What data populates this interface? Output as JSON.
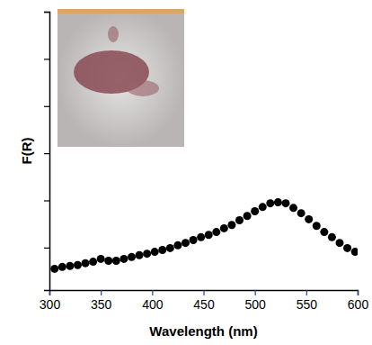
{
  "chart_data": {
    "type": "scatter",
    "x_label": "Wavelength (nm)",
    "y_label": "F(R)",
    "x": [
      305,
      312.5,
      320,
      327.5,
      335,
      342.5,
      350,
      357.5,
      365,
      372.5,
      380,
      387.5,
      395,
      402.5,
      410,
      417.5,
      425,
      432.5,
      440,
      447.5,
      455,
      462.5,
      470,
      477.5,
      485,
      492.5,
      500,
      507.5,
      515,
      522.5,
      530,
      537.5,
      545,
      552.5,
      560,
      567.5,
      575,
      582.5,
      590,
      597.5
    ],
    "values": [
      0.55,
      0.59,
      0.61,
      0.63,
      0.67,
      0.7,
      0.76,
      0.72,
      0.72,
      0.76,
      0.8,
      0.84,
      0.87,
      0.91,
      0.95,
      0.99,
      1.05,
      1.1,
      1.16,
      1.22,
      1.27,
      1.33,
      1.41,
      1.48,
      1.58,
      1.67,
      1.77,
      1.86,
      1.94,
      1.96,
      1.94,
      1.84,
      1.73,
      1.6,
      1.46,
      1.33,
      1.22,
      1.1,
      0.99,
      0.91
    ],
    "color": "#000000",
    "marker": "circle",
    "xlim": [
      300,
      600
    ],
    "xticks": [
      300,
      350,
      400,
      450,
      500,
      550,
      600
    ],
    "ylim": [
      0.1,
      6
    ],
    "yticks": [
      1,
      2,
      3,
      4,
      5,
      6
    ],
    "tick_labels": "x",
    "grid": false
  }
}
